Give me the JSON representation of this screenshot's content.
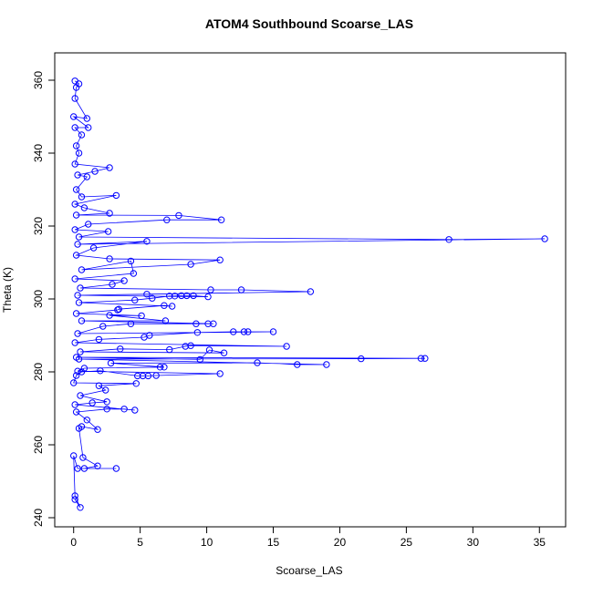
{
  "chart_data": {
    "type": "line",
    "title": "ATOM4 Southbound Scoarse_LAS",
    "x_label": "Scoarse_LAS",
    "y_label": "Theta (K)",
    "color": "#0000ff",
    "marker": "open-circle",
    "x": [
      0.1,
      0.5,
      0.1,
      0.0,
      0.3,
      3.2,
      0.8,
      1.8,
      0.7,
      0.4,
      0.6,
      1.8,
      1.0,
      0.2,
      2.5,
      3.8,
      4.6,
      0.1,
      1.4,
      2.5,
      0.5,
      2.4,
      1.9,
      4.7,
      0.0,
      0.2,
      0.6,
      2.0,
      4.8,
      5.2,
      5.6,
      6.2,
      11.0,
      0.3,
      0.8,
      6.5,
      6.8,
      2.8,
      13.8,
      16.8,
      19.0,
      0.4,
      21.6,
      26.1,
      26.4,
      0.2,
      9.5,
      10.2,
      11.3,
      0.5,
      3.5,
      7.2,
      8.4,
      8.8,
      16.0,
      0.1,
      1.9,
      5.3,
      5.7,
      9.3,
      12.0,
      12.8,
      13.1,
      15.0,
      0.3,
      2.2,
      4.3,
      9.2,
      10.1,
      10.5,
      0.6,
      6.9,
      2.7,
      5.1,
      0.2,
      3.3,
      3.4,
      6.8,
      7.4,
      0.4,
      4.6,
      5.9,
      7.2,
      7.6,
      8.1,
      8.5,
      9.0,
      10.1,
      0.3,
      5.5,
      17.8,
      12.6,
      10.3,
      0.5,
      2.9,
      3.8,
      0.1,
      4.5,
      4.3,
      0.6,
      8.8,
      11.0,
      2.7,
      0.2,
      1.5,
      5.5,
      0.3,
      35.4,
      28.2,
      0.4,
      2.6,
      0.1,
      1.1,
      7.0,
      11.1,
      7.9,
      0.2,
      2.7,
      0.8,
      0.1,
      3.2,
      0.6,
      0.2,
      1.0,
      0.3,
      1.6,
      2.7,
      0.1,
      0.4,
      0.2,
      0.6,
      0.1,
      1.1,
      0.0,
      1.0,
      0.1,
      0.2,
      0.4,
      0.1
    ],
    "values": [
      245.0,
      242.8,
      246.0,
      257.0,
      253.5,
      253.5,
      253.5,
      254.2,
      256.5,
      264.5,
      265.0,
      264.2,
      266.8,
      269.0,
      269.8,
      269.8,
      269.5,
      271.0,
      271.5,
      271.8,
      273.5,
      275.0,
      276.2,
      276.8,
      277.0,
      279.0,
      280.0,
      280.3,
      278.9,
      278.9,
      278.9,
      279.0,
      279.5,
      280.2,
      281.0,
      281.3,
      281.3,
      282.4,
      282.5,
      282.0,
      282.0,
      283.5,
      283.6,
      283.7,
      283.7,
      284.0,
      283.4,
      286.0,
      285.2,
      285.5,
      286.3,
      286.1,
      287.0,
      287.2,
      287.0,
      288.0,
      288.9,
      289.5,
      290.0,
      290.8,
      291.0,
      291.0,
      291.0,
      291.0,
      290.5,
      292.5,
      293.2,
      293.2,
      293.2,
      293.2,
      294.0,
      294.0,
      295.5,
      295.4,
      296.0,
      297.0,
      297.2,
      298.2,
      298.0,
      299.0,
      299.7,
      300.2,
      300.8,
      300.8,
      300.9,
      300.9,
      300.9,
      300.6,
      301.0,
      301.3,
      302.0,
      302.5,
      302.5,
      303.0,
      304.0,
      305.0,
      305.5,
      307.0,
      310.4,
      308.0,
      309.5,
      310.7,
      311.0,
      312.0,
      314.0,
      315.8,
      315.0,
      316.5,
      316.3,
      317.0,
      318.5,
      319.0,
      320.5,
      321.7,
      321.7,
      322.9,
      323.0,
      323.5,
      325.0,
      326.0,
      328.4,
      328.0,
      330.0,
      333.5,
      334.0,
      335.0,
      336.0,
      337.0,
      340.0,
      342.0,
      345.0,
      347.0,
      347.0,
      350.0,
      349.5,
      355.0,
      358.0,
      359.0,
      359.8
    ],
    "xlim": [
      -1.42,
      36.97
    ],
    "xticks": [
      0,
      5,
      10,
      15,
      20,
      25,
      30,
      35
    ],
    "ylim": [
      237.5,
      367.5
    ],
    "yticks": [
      240,
      260,
      280,
      300,
      320,
      340,
      360
    ]
  }
}
